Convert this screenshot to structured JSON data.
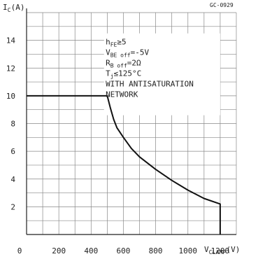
{
  "figure_code": "GC-0929",
  "chart_data": {
    "type": "line",
    "title": "",
    "xlabel": {
      "main": "V",
      "sub": "CLAMP",
      "unit": "(V)"
    },
    "ylabel": {
      "main": "I",
      "sub": "C",
      "unit": "(A)"
    },
    "xlim": [
      0,
      1300
    ],
    "ylim": [
      0,
      16
    ],
    "x_ticks": [
      0,
      200,
      400,
      600,
      800,
      1000,
      1200
    ],
    "x_tick_labels": [
      "0",
      "200",
      "400",
      "600",
      "800",
      "1000",
      "1200"
    ],
    "y_ticks": [
      2,
      4,
      6,
      8,
      10,
      12,
      14
    ],
    "y_tick_labels": [
      "2",
      "4",
      "6",
      "8",
      "10",
      "12",
      "14"
    ],
    "grid": true,
    "series": [
      {
        "x": [
          0,
          500,
          520,
          540,
          560,
          600,
          650,
          700,
          800,
          900,
          1000,
          1100,
          1200,
          1200
        ],
        "y": [
          10,
          10,
          9.1,
          8.3,
          7.7,
          7.0,
          6.2,
          5.6,
          4.7,
          3.9,
          3.2,
          2.6,
          2.2,
          0
        ]
      }
    ],
    "annotation_lines": [
      {
        "parts": [
          {
            "t": "h",
            "sub": false
          },
          {
            "t": "FE",
            "sub": true
          },
          {
            "t": "≥5",
            "sub": false
          }
        ]
      },
      {
        "parts": [
          {
            "t": "V",
            "sub": false
          },
          {
            "t": "BE off",
            "sub": true
          },
          {
            "t": "=-5V",
            "sub": false
          }
        ]
      },
      {
        "parts": [
          {
            "t": "R",
            "sub": false
          },
          {
            "t": "B off",
            "sub": true
          },
          {
            "t": "=2Ω",
            "sub": false
          }
        ]
      },
      {
        "parts": [
          {
            "t": "T",
            "sub": false
          },
          {
            "t": "j",
            "sub": true
          },
          {
            "t": "≤125°C",
            "sub": false
          }
        ]
      },
      {
        "parts": [
          {
            "t": "WITH ANTISATURATION",
            "sub": false
          }
        ]
      },
      {
        "parts": [
          {
            "t": "NETWORK",
            "sub": false
          }
        ]
      }
    ]
  }
}
